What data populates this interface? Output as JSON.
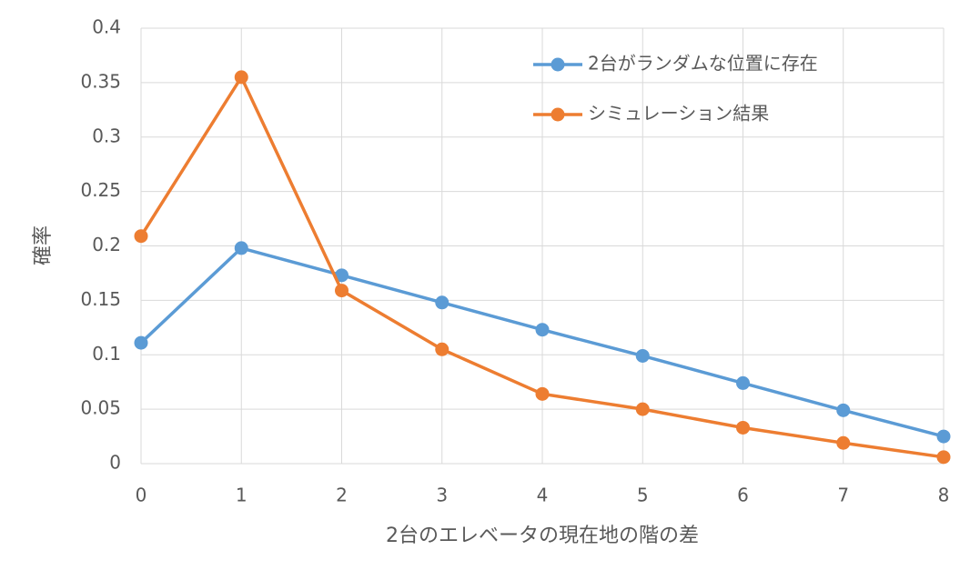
{
  "chart_data": {
    "type": "line",
    "x": [
      0,
      1,
      2,
      3,
      4,
      5,
      6,
      7,
      8
    ],
    "series": [
      {
        "name": "2台がランダムな位置に存在",
        "color": "#5b9bd5",
        "values": [
          0.111,
          0.198,
          0.173,
          0.148,
          0.123,
          0.099,
          0.074,
          0.049,
          0.025
        ]
      },
      {
        "name": "シミュレーション結果",
        "color": "#ed7d31",
        "values": [
          0.209,
          0.355,
          0.159,
          0.105,
          0.064,
          0.05,
          0.033,
          0.019,
          0.006
        ]
      }
    ],
    "xlabel": "2台のエレベータの現在地の階の差",
    "ylabel": "確率",
    "xlim": [
      0,
      8
    ],
    "xticks": [
      0,
      1,
      2,
      3,
      4,
      5,
      6,
      7,
      8
    ],
    "ylim": [
      0,
      0.4
    ],
    "yticks": [
      0,
      0.05,
      0.1,
      0.15,
      0.2,
      0.25,
      0.3,
      0.35,
      0.4
    ],
    "grid": true,
    "legend": "upper right"
  }
}
